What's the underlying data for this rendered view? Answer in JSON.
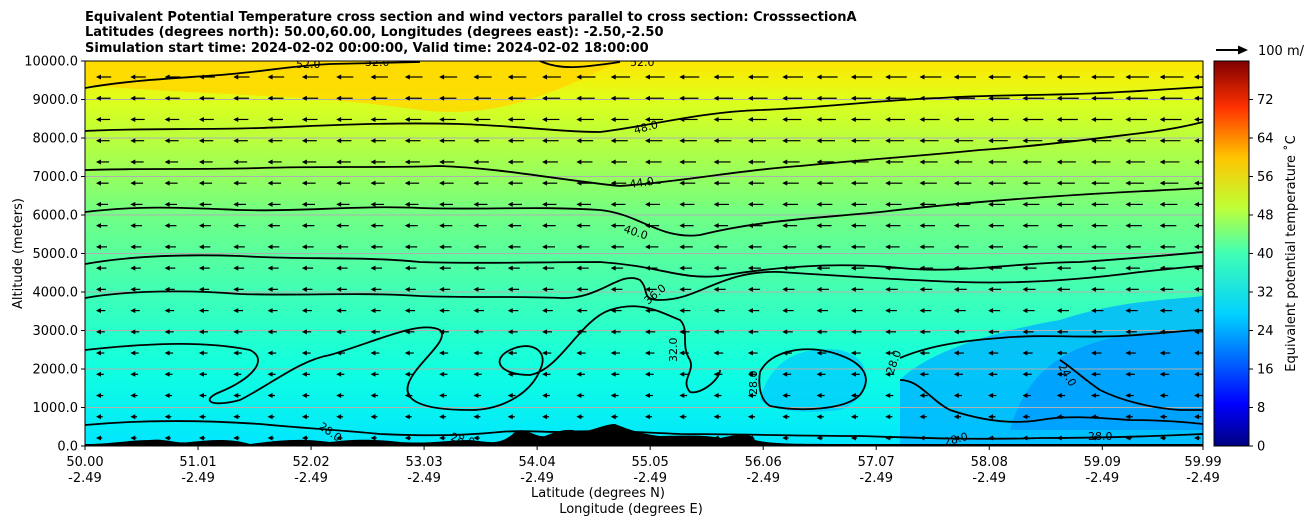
{
  "chart_data": {
    "type": "heatmap",
    "title_lines": [
      "Equivalent Potential Temperature cross section and wind vectors parallel to cross section: CrosssectionA",
      "Latitudes (degrees north): 50.00,60.00, Longitudes (degrees east): -2.50,-2.50",
      "Simulation start time: 2024-02-02 00:00:00, Valid time: 2024-02-02 18:00:00"
    ],
    "xlabel_lines": [
      "Latitude (degrees N)",
      "Longitude (degrees E)"
    ],
    "ylabel": "Altitude (meters)",
    "x_ticks": [
      {
        "lat": "50.00",
        "lon": "-2.49"
      },
      {
        "lat": "51.01",
        "lon": "-2.49"
      },
      {
        "lat": "52.02",
        "lon": "-2.49"
      },
      {
        "lat": "53.03",
        "lon": "-2.49"
      },
      {
        "lat": "54.04",
        "lon": "-2.49"
      },
      {
        "lat": "55.05",
        "lon": "-2.49"
      },
      {
        "lat": "56.06",
        "lon": "-2.49"
      },
      {
        "lat": "57.07",
        "lon": "-2.49"
      },
      {
        "lat": "58.08",
        "lon": "-2.49"
      },
      {
        "lat": "59.09",
        "lon": "-2.49"
      },
      {
        "lat": "59.99",
        "lon": "-2.49"
      }
    ],
    "y_ticks": [
      "0.0",
      "1000.0",
      "2000.0",
      "3000.0",
      "4000.0",
      "5000.0",
      "6000.0",
      "7000.0",
      "8000.0",
      "9000.0",
      "10000.0"
    ],
    "ylim": [
      0,
      10000
    ],
    "grid": "horizontal",
    "colorbar": {
      "label": "Equivalent potential temperature ˚C",
      "range": [
        0,
        80
      ],
      "ticks": [
        "0",
        "8",
        "16",
        "24",
        "32",
        "40",
        "48",
        "56",
        "64",
        "72"
      ],
      "colormap": "jet"
    },
    "quiver_key_label": "100 m/",
    "contour_levels": [
      {
        "value": 24,
        "label": "24.0"
      },
      {
        "value": 28,
        "label": "28.0"
      },
      {
        "value": 32,
        "label": "32.0"
      },
      {
        "value": 36,
        "label": "36.0"
      },
      {
        "value": 40,
        "label": "40.0"
      },
      {
        "value": 44,
        "label": "44.0"
      },
      {
        "value": 48,
        "label": "48.0"
      },
      {
        "value": 52,
        "label": "52.0"
      }
    ],
    "field_description_levels": [
      {
        "altitude": 0,
        "theta_e": 30
      },
      {
        "altitude": 1000,
        "theta_e": 31
      },
      {
        "altitude": 2000,
        "theta_e": 33
      },
      {
        "altitude": 3000,
        "theta_e": 35
      },
      {
        "altitude": 4000,
        "theta_e": 37
      },
      {
        "altitude": 5000,
        "theta_e": 40
      },
      {
        "altitude": 6000,
        "theta_e": 42
      },
      {
        "altitude": 7000,
        "theta_e": 44
      },
      {
        "altitude": 8000,
        "theta_e": 47
      },
      {
        "altitude": 9000,
        "theta_e": 50
      },
      {
        "altitude": 10000,
        "theta_e": 53
      }
    ]
  }
}
